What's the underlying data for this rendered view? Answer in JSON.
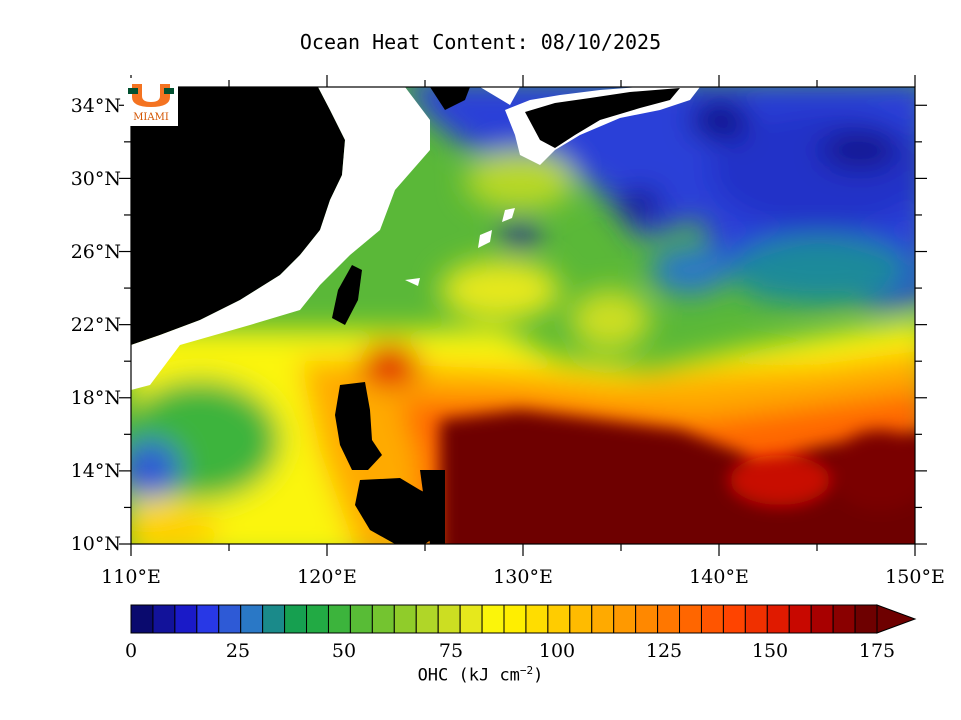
{
  "title": "Ocean Heat Content: 08/10/2025",
  "logo": {
    "text": "MIAMI",
    "primary_color": "#f47321",
    "secondary_color": "#005030"
  },
  "map": {
    "lat_ticks": [
      "34°N",
      "30°N",
      "26°N",
      "22°N",
      "18°N",
      "14°N",
      "10°N"
    ],
    "lon_ticks": [
      "110°E",
      "120°E",
      "130°E",
      "140°E",
      "150°E"
    ],
    "lat_range": [
      10,
      35
    ],
    "lon_range": [
      110,
      150
    ],
    "land_color": "#000000"
  },
  "colorbar": {
    "labels": [
      "0",
      "25",
      "50",
      "75",
      "100",
      "125",
      "150",
      "175"
    ],
    "title_main": "OHC (kJ cm",
    "title_sup": "−2",
    "title_end": ")",
    "colors": [
      "#0a0a6e",
      "#12129a",
      "#1a1ac8",
      "#2838e6",
      "#2e5ad6",
      "#2a78c6",
      "#1a8a8a",
      "#16a050",
      "#22aa44",
      "#3cb43c",
      "#58bc36",
      "#74c430",
      "#90cc2a",
      "#b0d628",
      "#ccde22",
      "#e6e81c",
      "#fbf50a",
      "#ffee00",
      "#ffdd00",
      "#ffcc00",
      "#ffbb00",
      "#ffaa00",
      "#ff9900",
      "#ff8800",
      "#ff7700",
      "#ff6600",
      "#ff5500",
      "#ff4400",
      "#f03000",
      "#e01a00",
      "#c80800",
      "#a80000",
      "#8a0000",
      "#6e0000"
    ]
  }
}
